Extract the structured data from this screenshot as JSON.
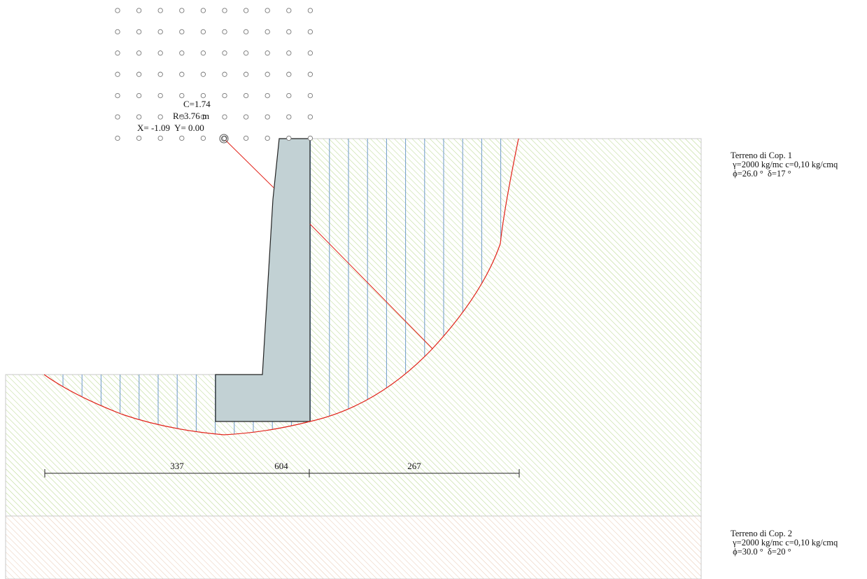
{
  "colors": {
    "soil1_hatch": "#b6d68a",
    "soil2_hatch": "#e8c9b2",
    "wall_fill": "#c2d1d4",
    "circle_red": "#e2231a",
    "slice_blue": "#6e9ac9",
    "grid_dot": "#777777"
  },
  "search_grid": {
    "columns": 10,
    "rows": 7
  },
  "critical_circle": {
    "safety_factor_label": "C=1.74",
    "radius_label": "R=3.76 m",
    "center_label": "X= -1.09  Y= 0.00"
  },
  "dimensions": [
    {
      "label": "337"
    },
    {
      "label": "604"
    },
    {
      "label": "267"
    }
  ],
  "soils": [
    {
      "name": "Terreno di Cop. 1",
      "props1": " γ=2000 kg/mc c=0,10 kg/cmq",
      "props2": " ϕ=26.0 °  δ=17 °"
    },
    {
      "name": "Terreno di Cop. 2",
      "props1": " γ=2000 kg/mc c=0,10 kg/cmq",
      "props2": " ϕ=30.0 °  δ=20 °"
    }
  ]
}
